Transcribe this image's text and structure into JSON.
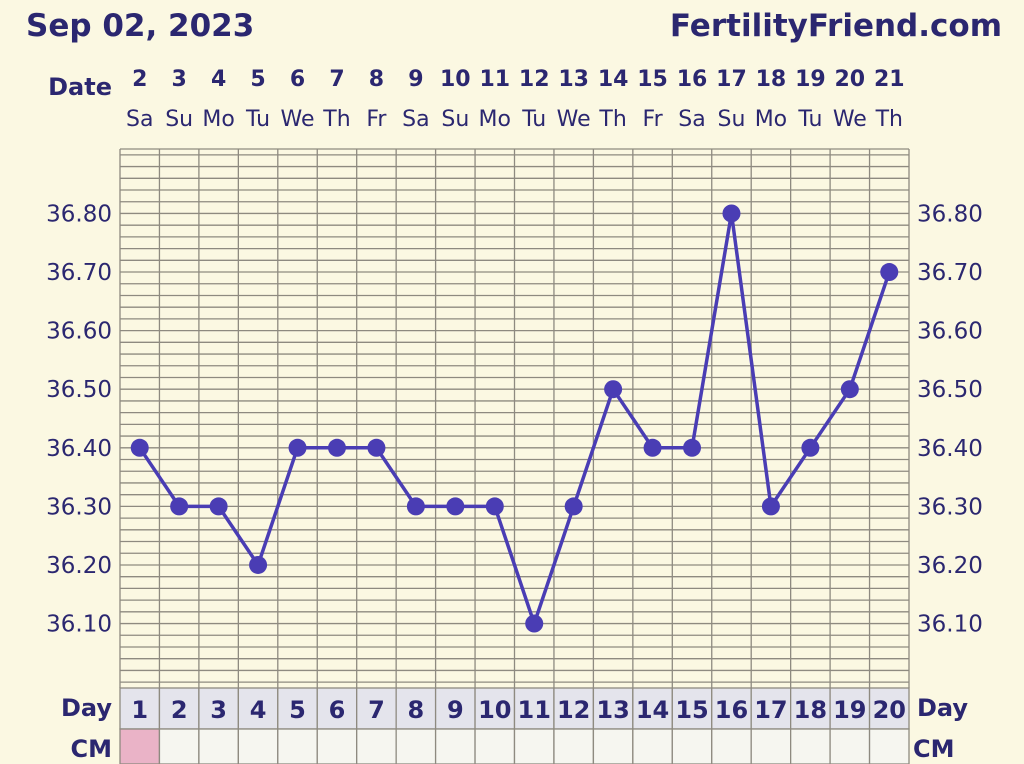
{
  "header": {
    "date": "Sep 02, 2023",
    "site": "FertilityFriend.com"
  },
  "labels": {
    "date": "Date",
    "day": "Day",
    "cm": "CM"
  },
  "colors": {
    "background": "#fbf8e2",
    "grid": "#8e8a80",
    "line": "#4a3db4",
    "text": "#2b2770",
    "day_row": "#e4e4ec",
    "cm_row": "#f6f6f0",
    "cm_marked": "#eab3c7"
  },
  "chart_data": {
    "type": "line",
    "dates": [
      "2",
      "3",
      "4",
      "5",
      "6",
      "7",
      "8",
      "9",
      "10",
      "11",
      "12",
      "13",
      "14",
      "15",
      "16",
      "17",
      "18",
      "19",
      "20",
      "21"
    ],
    "weekdays": [
      "Sa",
      "Su",
      "Mo",
      "Tu",
      "We",
      "Th",
      "Fr",
      "Sa",
      "Su",
      "Mo",
      "Tu",
      "We",
      "Th",
      "Fr",
      "Sa",
      "Su",
      "Mo",
      "Tu",
      "We",
      "Th"
    ],
    "cycle_days": [
      "1",
      "2",
      "3",
      "4",
      "5",
      "6",
      "7",
      "8",
      "9",
      "10",
      "11",
      "12",
      "13",
      "14",
      "15",
      "16",
      "17",
      "18",
      "19",
      "20"
    ],
    "series": [
      {
        "values": [
          36.4,
          36.3,
          36.3,
          36.2,
          36.4,
          36.4,
          36.4,
          36.3,
          36.3,
          36.3,
          36.1,
          36.3,
          36.5,
          36.4,
          36.4,
          36.8,
          36.3,
          36.4,
          36.5,
          36.7
        ]
      }
    ],
    "y_ticks": [
      "36.80",
      "36.70",
      "36.60",
      "36.50",
      "36.40",
      "36.30",
      "36.20",
      "36.10"
    ],
    "ylim": [
      35.99,
      36.91
    ],
    "cm_marked_days": [
      1
    ],
    "grid": true
  }
}
